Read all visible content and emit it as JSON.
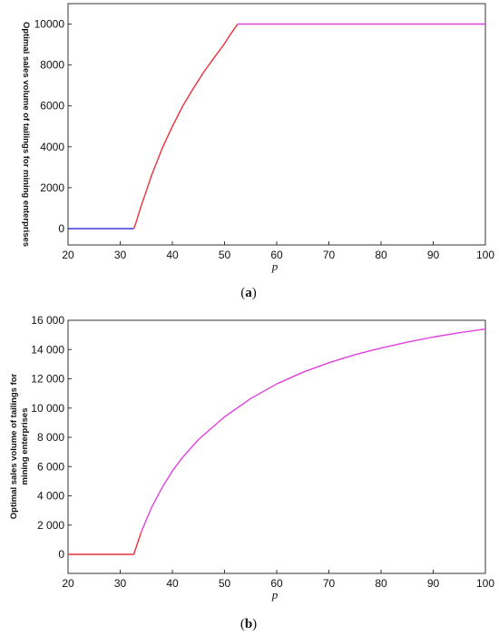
{
  "chart_data": [
    {
      "type": "line",
      "caption": "a",
      "xlabel": "p",
      "ylabel_lines": [
        "Optimal sales volume of tailings for mining enterprises"
      ],
      "xlim": [
        20,
        100
      ],
      "ylim": [
        -800,
        11000
      ],
      "xticks": [
        20,
        30,
        40,
        50,
        60,
        70,
        80,
        90,
        100
      ],
      "xtick_labels": [
        "20",
        "30",
        "40",
        "50",
        "60",
        "70",
        "80",
        "90",
        "100"
      ],
      "yticks": [
        0,
        2000,
        4000,
        6000,
        8000,
        10000
      ],
      "ytick_labels": [
        "0",
        "2000",
        "4000",
        "6000",
        "8000",
        "10000"
      ],
      "series": [
        {
          "color": "#3a3ad8",
          "points": [
            [
              20,
              0
            ],
            [
              32.6,
              0
            ]
          ]
        },
        {
          "color": "#e8303a",
          "points": [
            [
              32.6,
              0
            ],
            [
              33,
              280
            ],
            [
              34,
              1100
            ],
            [
              35,
              1850
            ],
            [
              36,
              2600
            ],
            [
              37,
              3250
            ],
            [
              38,
              3900
            ],
            [
              40,
              5000
            ],
            [
              42,
              6000
            ],
            [
              44,
              6850
            ],
            [
              46,
              7650
            ],
            [
              48,
              8350
            ],
            [
              50,
              9050
            ],
            [
              51,
              9450
            ],
            [
              52.5,
              10000
            ]
          ]
        },
        {
          "color": "#e040e0",
          "points": [
            [
              52.5,
              10000
            ],
            [
              100,
              10000
            ]
          ]
        }
      ]
    },
    {
      "type": "line",
      "caption": "b",
      "xlabel": "p",
      "ylabel_lines": [
        "Optimal sales volume of tailings for",
        "mining enterprises"
      ],
      "xlim": [
        20,
        100
      ],
      "ylim": [
        -1300,
        16000
      ],
      "xticks": [
        20,
        30,
        40,
        50,
        60,
        70,
        80,
        90,
        100
      ],
      "xtick_labels": [
        "20",
        "30",
        "40",
        "50",
        "60",
        "70",
        "80",
        "90",
        "100"
      ],
      "yticks": [
        0,
        2000,
        4000,
        6000,
        8000,
        10000,
        12000,
        14000,
        16000
      ],
      "ytick_labels": [
        "0",
        "2 000",
        "4 000",
        "6 000",
        "8 000",
        "10 000",
        "12 000",
        "14 000",
        "16 000"
      ],
      "series": [
        {
          "color": "#e8303a",
          "points": [
            [
              20,
              0
            ],
            [
              32.6,
              0
            ],
            [
              34,
              1500
            ]
          ]
        },
        {
          "color": "#e040e0",
          "points": [
            [
              34,
              1500
            ],
            [
              36,
              3200
            ],
            [
              38,
              4550
            ],
            [
              40,
              5700
            ],
            [
              42,
              6650
            ],
            [
              45,
              7850
            ],
            [
              50,
              9400
            ],
            [
              55,
              10650
            ],
            [
              60,
              11650
            ],
            [
              65,
              12450
            ],
            [
              70,
              13100
            ],
            [
              75,
              13650
            ],
            [
              80,
              14100
            ],
            [
              85,
              14500
            ],
            [
              90,
              14850
            ],
            [
              95,
              15150
            ],
            [
              100,
              15400
            ]
          ]
        }
      ]
    }
  ]
}
